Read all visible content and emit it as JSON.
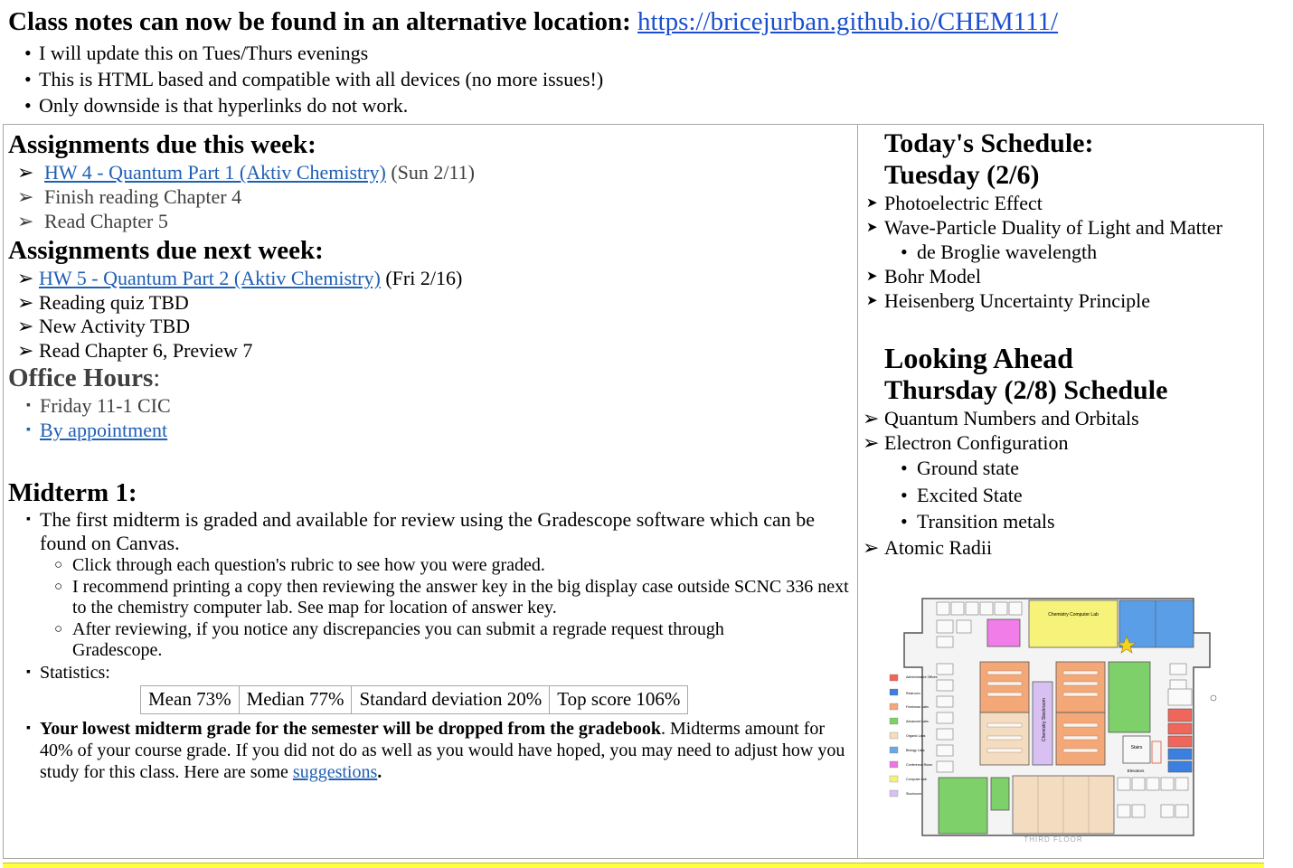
{
  "banner": {
    "title": "Class notes can now be found in an alternative location:",
    "link": "https://bricejurban.github.io/CHEM111/",
    "bullets": [
      "I will update this on Tues/Thurs evenings",
      "This is HTML based and compatible with all devices (no more issues!)",
      "Only downside is that hyperlinks do not work."
    ]
  },
  "this_week": {
    "heading": "Assignments due this week:",
    "items": [
      {
        "link": "HW 4 - Quantum Part 1 (Aktiv Chemistry)",
        "text": "(Sun 2/11)"
      },
      {
        "text": "Finish reading Chapter 4"
      },
      {
        "text": "Read Chapter 5"
      }
    ]
  },
  "next_week": {
    "heading": "Assignments due next week:",
    "items": [
      {
        "link": "HW 5 - Quantum Part 2 (Aktiv Chemistry)",
        "text": "(Fri 2/16)"
      },
      {
        "text": "Reading quiz TBD"
      },
      {
        "text": "New Activity TBD"
      },
      {
        "text": "Read Chapter 6, Preview 7"
      }
    ]
  },
  "office_hours": {
    "heading": "Office Hours",
    "colon": ":",
    "items": [
      "Friday 11-1 CIC"
    ],
    "link": "By appointment"
  },
  "midterm": {
    "heading": "Midterm 1:",
    "intro": "The first midterm is graded and available for review using the Gradescope software which can be found on Canvas.",
    "sub": [
      "Click through each question's rubric to see how you were graded.",
      "I recommend printing a copy then reviewing the answer key in the big display case outside SCNC 336 next to the chemistry computer lab. See map for location of answer key.",
      "After reviewing, if you notice any discrepancies you can submit a regrade request through Gradescope."
    ],
    "stats_label": "Statistics:",
    "stats": [
      "Mean 73%",
      "Median 77%",
      "Standard deviation 20%",
      "Top score 106%"
    ],
    "drop_bold": "Your lowest midterm grade for the semester will be dropped from the gradebook",
    "drop_rest": ". Midterms amount for 40% of your course grade. If you did not do as well as you would have hoped, you may need to adjust how you study for this class. Here are some ",
    "drop_link": "suggestions",
    "drop_end": "."
  },
  "today": {
    "heading1": "Today's Schedule:",
    "heading2": "Tuesday (2/6)",
    "items": [
      "Photoelectric Effect",
      "Wave-Particle Duality of Light and Matter"
    ],
    "sub": "de Broglie wavelength",
    "items2": [
      "Bohr Model",
      "Heisenberg Uncertainty Principle"
    ]
  },
  "ahead": {
    "heading1": "Looking Ahead",
    "heading2": "Thursday (2/8) Schedule",
    "items": [
      "Quantum Numbers and Orbitals",
      "Electron Configuration"
    ],
    "sub": [
      "Ground state",
      "Excited State",
      "Transition metals"
    ],
    "last": "Atomic Radii"
  },
  "map": {
    "top_label": "Chemistry Computer Lab",
    "stockroom_label": "Chemistry Stockroom",
    "stairs_label": "Stairs",
    "elevators_label": "Elevators",
    "floor_label": "THIRD FLOOR",
    "legend": [
      {
        "label": "Administrative Offices",
        "color": "#f0665a"
      },
      {
        "label": "Restroom",
        "color": "#3b7fe0"
      },
      {
        "label": "Freshman Labs",
        "color": "#f2a878"
      },
      {
        "label": "Advanced Labs",
        "color": "#7ed06a"
      },
      {
        "label": "Organic Labs",
        "color": "#f3dcc0"
      },
      {
        "label": "Biology Labs",
        "color": "#6aa7e8"
      },
      {
        "label": "Conference Room",
        "color": "#e878e0"
      },
      {
        "label": "Computer Lab",
        "color": "#f5f078"
      },
      {
        "label": "Stockroom",
        "color": "#d8c0f0"
      }
    ]
  }
}
